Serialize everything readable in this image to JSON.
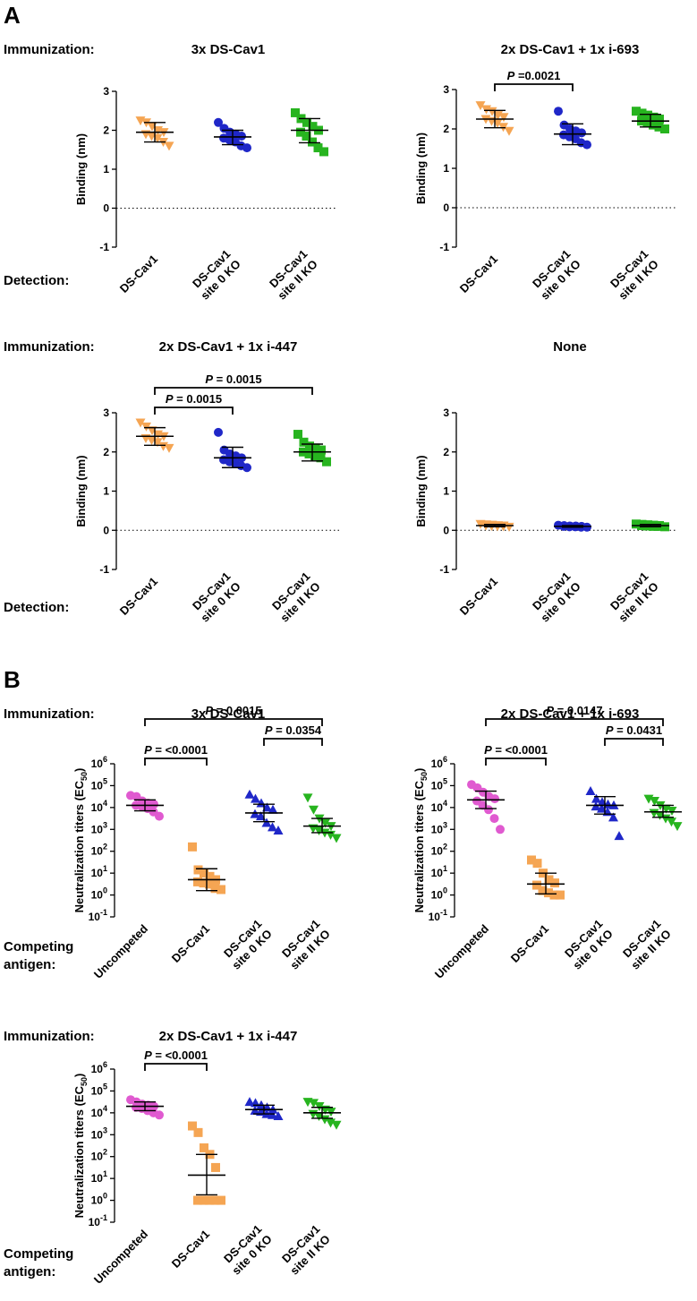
{
  "panels": {
    "A": "A",
    "B": "B"
  },
  "row_labels": {
    "immunization": "Immunization:",
    "detection": "Detection:",
    "competing_line1": "Competing",
    "competing_line2": "antigen:"
  },
  "colors": {
    "orange": "#F5A553",
    "blue": "#1F27C8",
    "green": "#27B41F",
    "magenta": "#E05AD0"
  },
  "chart_data": [
    {
      "id": "a1",
      "type": "scatter",
      "title": "3x DS-Cav1",
      "ylabel": "Binding (nm)",
      "ylim": [
        -1,
        3
      ],
      "yticks": [
        "-1",
        "0",
        "1",
        "2",
        "3"
      ],
      "zero_line": true,
      "categories": [
        [
          "DS-Cav1"
        ],
        [
          "DS-Cav1",
          "site 0 KO"
        ],
        [
          "DS-Cav1",
          "site II KO"
        ]
      ],
      "series": [
        {
          "name": "DS-Cav1",
          "color": "orange",
          "marker": "triangle-down",
          "mean": 1.95,
          "sd_low": 1.7,
          "sd_high": 2.2,
          "values": [
            2.25,
            2.2,
            2.1,
            2.0,
            1.95,
            1.9,
            1.85,
            1.8,
            1.7,
            1.6
          ]
        },
        {
          "name": "DS-Cav1 site 0 KO",
          "color": "blue",
          "marker": "circle",
          "mean": 1.83,
          "sd_low": 1.63,
          "sd_high": 2.0,
          "values": [
            2.2,
            2.05,
            1.95,
            1.9,
            1.85,
            1.8,
            1.75,
            1.7,
            1.6,
            1.55
          ]
        },
        {
          "name": "DS-Cav1 site II KO",
          "color": "green",
          "marker": "square",
          "mean": 2.0,
          "sd_low": 1.68,
          "sd_high": 2.3,
          "values": [
            2.45,
            2.3,
            2.2,
            2.1,
            2.0,
            1.95,
            1.85,
            1.7,
            1.55,
            1.45
          ]
        }
      ],
      "comparisons": []
    },
    {
      "id": "a2",
      "type": "scatter",
      "title": "2x DS-Cav1 + 1x i-693",
      "ylabel": "Binding (nm)",
      "ylim": [
        -1,
        3
      ],
      "yticks": [
        "-1",
        "0",
        "1",
        "2",
        "3"
      ],
      "zero_line": true,
      "categories": [
        [
          "DS-Cav1"
        ],
        [
          "DS-Cav1",
          "site 0 KO"
        ],
        [
          "DS-Cav1",
          "site II KO"
        ]
      ],
      "series": [
        {
          "name": "DS-Cav1",
          "color": "orange",
          "marker": "triangle-down",
          "mean": 2.25,
          "sd_low": 2.03,
          "sd_high": 2.47,
          "values": [
            2.6,
            2.5,
            2.45,
            2.35,
            2.3,
            2.25,
            2.2,
            2.15,
            2.05,
            1.95
          ]
        },
        {
          "name": "DS-Cav1 site 0 KO",
          "color": "blue",
          "marker": "circle",
          "mean": 1.87,
          "sd_low": 1.6,
          "sd_high": 2.13,
          "values": [
            2.45,
            2.1,
            2.0,
            1.95,
            1.9,
            1.85,
            1.8,
            1.75,
            1.65,
            1.6
          ]
        },
        {
          "name": "DS-Cav1 site II KO",
          "color": "green",
          "marker": "square",
          "mean": 2.2,
          "sd_low": 2.05,
          "sd_high": 2.37,
          "values": [
            2.45,
            2.4,
            2.35,
            2.3,
            2.25,
            2.2,
            2.15,
            2.1,
            2.05,
            2.0
          ]
        }
      ],
      "comparisons": [
        {
          "from": 0,
          "to": 1,
          "p_italic": "P",
          "p_rest": " =0.0021"
        }
      ]
    },
    {
      "id": "a3",
      "type": "scatter",
      "title": "2x DS-Cav1 + 1x i-447",
      "ylabel": "Binding (nm)",
      "ylim": [
        -1,
        3
      ],
      "yticks": [
        "-1",
        "0",
        "1",
        "2",
        "3"
      ],
      "zero_line": true,
      "categories": [
        [
          "DS-Cav1"
        ],
        [
          "DS-Cav1",
          "site 0 KO"
        ],
        [
          "DS-Cav1",
          "site II KO"
        ]
      ],
      "series": [
        {
          "name": "DS-Cav1",
          "color": "orange",
          "marker": "triangle-down",
          "mean": 2.4,
          "sd_low": 2.17,
          "sd_high": 2.62,
          "values": [
            2.75,
            2.65,
            2.55,
            2.45,
            2.4,
            2.35,
            2.3,
            2.25,
            2.15,
            2.1
          ]
        },
        {
          "name": "DS-Cav1 site 0 KO",
          "color": "blue",
          "marker": "circle",
          "mean": 1.85,
          "sd_low": 1.6,
          "sd_high": 2.12,
          "values": [
            2.5,
            2.05,
            1.95,
            1.9,
            1.85,
            1.8,
            1.75,
            1.7,
            1.65,
            1.6
          ]
        },
        {
          "name": "DS-Cav1 site II KO",
          "color": "green",
          "marker": "square",
          "mean": 2.0,
          "sd_low": 1.77,
          "sd_high": 2.2,
          "values": [
            2.45,
            2.25,
            2.15,
            2.1,
            2.05,
            2.0,
            1.95,
            1.9,
            1.85,
            1.75
          ]
        }
      ],
      "comparisons": [
        {
          "from": 0,
          "to": 1,
          "p_italic": "P",
          "p_rest": " = 0.0015"
        },
        {
          "from": 0,
          "to": 2,
          "p_italic": "P",
          "p_rest": " = 0.0015"
        }
      ]
    },
    {
      "id": "a4",
      "type": "scatter",
      "title": "None",
      "ylabel": "Binding (nm)",
      "ylim": [
        -1,
        3
      ],
      "yticks": [
        "-1",
        "0",
        "1",
        "2",
        "3"
      ],
      "zero_line": true,
      "categories": [
        [
          "DS-Cav1"
        ],
        [
          "DS-Cav1",
          "site 0 KO"
        ],
        [
          "DS-Cav1",
          "site II KO"
        ]
      ],
      "series": [
        {
          "name": "DS-Cav1",
          "color": "orange",
          "marker": "triangle-down",
          "mean": 0.12,
          "sd_low": 0.09,
          "sd_high": 0.15,
          "values": [
            0.16,
            0.15,
            0.14,
            0.13,
            0.12,
            0.12,
            0.11,
            0.1,
            0.1,
            0.09
          ]
        },
        {
          "name": "DS-Cav1 site 0 KO",
          "color": "blue",
          "marker": "circle",
          "mean": 0.1,
          "sd_low": 0.08,
          "sd_high": 0.12,
          "values": [
            0.13,
            0.12,
            0.11,
            0.11,
            0.1,
            0.1,
            0.09,
            0.09,
            0.08,
            0.08
          ]
        },
        {
          "name": "DS-Cav1 site II KO",
          "color": "green",
          "marker": "square",
          "mean": 0.12,
          "sd_low": 0.09,
          "sd_high": 0.15,
          "values": [
            0.16,
            0.15,
            0.14,
            0.13,
            0.12,
            0.12,
            0.11,
            0.1,
            0.1,
            0.09
          ]
        }
      ],
      "comparisons": []
    },
    {
      "id": "b1",
      "type": "scatter",
      "title": "3x DS-Cav1",
      "ylabel": "Neutralization titers (EC",
      "ylabel_sub": "50",
      "ylabel_end": ")",
      "ylim": [
        -1,
        6
      ],
      "log": true,
      "yticks": [
        "-1",
        "0",
        "1",
        "2",
        "3",
        "4",
        "5",
        "6"
      ],
      "zero_line": false,
      "categories": [
        [
          "Uncompeted"
        ],
        [
          "DS-Cav1"
        ],
        [
          "DS-Cav1",
          "site 0 KO"
        ],
        [
          "DS-Cav1",
          "site II KO"
        ]
      ],
      "series": [
        {
          "name": "Uncompeted",
          "color": "magenta",
          "marker": "circle",
          "mean": 4.1,
          "sd_low": 3.85,
          "sd_high": 4.35,
          "values": [
            4.55,
            4.5,
            4.3,
            4.2,
            4.15,
            4.1,
            4.05,
            3.95,
            3.8,
            3.6
          ]
        },
        {
          "name": "DS-Cav1",
          "color": "orange",
          "marker": "square",
          "mean": 0.7,
          "sd_low": 0.2,
          "sd_high": 1.2,
          "values": [
            2.2,
            1.15,
            1.0,
            0.85,
            0.7,
            0.6,
            0.55,
            0.5,
            0.3,
            0.25
          ]
        },
        {
          "name": "DS-Cav1 site 0 KO",
          "color": "blue",
          "marker": "triangle-up",
          "mean": 3.75,
          "sd_low": 3.35,
          "sd_high": 4.15,
          "values": [
            4.6,
            4.4,
            4.2,
            4.0,
            3.9,
            3.7,
            3.6,
            3.3,
            3.1,
            2.95
          ]
        },
        {
          "name": "DS-Cav1 site II KO",
          "color": "green",
          "marker": "triangle-down",
          "mean": 3.15,
          "sd_low": 2.85,
          "sd_high": 3.5,
          "values": [
            4.45,
            3.9,
            3.5,
            3.3,
            3.15,
            3.05,
            2.95,
            2.85,
            2.75,
            2.6
          ]
        }
      ],
      "comparisons": [
        {
          "from": 0,
          "to": 1,
          "p_italic": "P",
          "p_rest": " = <0.0001"
        },
        {
          "from": 2,
          "to": 3,
          "p_italic": "P",
          "p_rest": " = 0.0354"
        },
        {
          "from": 0,
          "to": 3,
          "p_italic": "P",
          "p_rest": " =    0.0015"
        }
      ]
    },
    {
      "id": "b2",
      "type": "scatter",
      "title": "2x DS-Cav1 + 1x i-693",
      "ylabel": "Neutralization titers (EC",
      "ylabel_sub": "50",
      "ylabel_end": ")",
      "ylim": [
        -1,
        6
      ],
      "log": true,
      "yticks": [
        "-1",
        "0",
        "1",
        "2",
        "3",
        "4",
        "5",
        "6"
      ],
      "zero_line": false,
      "categories": [
        [
          "Uncompeted"
        ],
        [
          "DS-Cav1"
        ],
        [
          "DS-Cav1",
          "site 0 KO"
        ],
        [
          "DS-Cav1",
          "site II KO"
        ]
      ],
      "series": [
        {
          "name": "Uncompeted",
          "color": "magenta",
          "marker": "circle",
          "mean": 4.35,
          "sd_low": 3.95,
          "sd_high": 4.75,
          "values": [
            5.05,
            4.9,
            4.7,
            4.5,
            4.4,
            4.3,
            4.1,
            3.9,
            3.5,
            3.0
          ]
        },
        {
          "name": "DS-Cav1",
          "color": "orange",
          "marker": "square",
          "mean": 0.5,
          "sd_low": 0.05,
          "sd_high": 1.0,
          "values": [
            1.6,
            1.45,
            1.0,
            0.7,
            0.55,
            0.45,
            0.2,
            0.1,
            0.0,
            0.0
          ]
        },
        {
          "name": "DS-Cav1 site 0 KO",
          "color": "blue",
          "marker": "triangle-up",
          "mean": 4.1,
          "sd_low": 3.7,
          "sd_high": 4.5,
          "values": [
            4.75,
            4.4,
            4.25,
            4.15,
            4.1,
            4.05,
            3.95,
            3.8,
            3.55,
            2.7
          ]
        },
        {
          "name": "DS-Cav1 site II KO",
          "color": "green",
          "marker": "triangle-down",
          "mean": 3.8,
          "sd_low": 3.55,
          "sd_high": 4.1,
          "values": [
            4.4,
            4.3,
            4.1,
            3.95,
            3.85,
            3.75,
            3.65,
            3.5,
            3.35,
            3.15
          ]
        }
      ],
      "comparisons": [
        {
          "from": 0,
          "to": 1,
          "p_italic": "P",
          "p_rest": " = <0.0001"
        },
        {
          "from": 2,
          "to": 3,
          "p_italic": "P",
          "p_rest": " = 0.0431"
        },
        {
          "from": 0,
          "to": 3,
          "p_italic": "P",
          "p_rest": " =    0.0147"
        }
      ]
    },
    {
      "id": "b3",
      "type": "scatter",
      "title": "2x DS-Cav1 + 1x i-447",
      "ylabel": "Neutralization titers (EC",
      "ylabel_sub": "50",
      "ylabel_end": ")",
      "ylim": [
        -1,
        6
      ],
      "log": true,
      "yticks": [
        "-1",
        "0",
        "1",
        "2",
        "3",
        "4",
        "5",
        "6"
      ],
      "zero_line": false,
      "categories": [
        [
          "Uncompeted"
        ],
        [
          "DS-Cav1"
        ],
        [
          "DS-Cav1",
          "site 0 KO"
        ],
        [
          "DS-Cav1",
          "site II KO"
        ]
      ],
      "series": [
        {
          "name": "Uncompeted",
          "color": "magenta",
          "marker": "circle",
          "mean": 4.3,
          "sd_low": 4.1,
          "sd_high": 4.5,
          "values": [
            4.6,
            4.5,
            4.4,
            4.35,
            4.3,
            4.25,
            4.2,
            4.1,
            4.0,
            3.9
          ]
        },
        {
          "name": "DS-Cav1",
          "color": "orange",
          "marker": "square",
          "mean": 1.15,
          "sd_low": 0.25,
          "sd_high": 2.1,
          "values": [
            3.4,
            3.1,
            2.4,
            2.1,
            1.5,
            0.0,
            0.0,
            0.0,
            0.0,
            0.0
          ]
        },
        {
          "name": "DS-Cav1 site 0 KO",
          "color": "blue",
          "marker": "triangle-up",
          "mean": 4.15,
          "sd_low": 3.95,
          "sd_high": 4.35,
          "values": [
            4.5,
            4.45,
            4.35,
            4.25,
            4.15,
            4.1,
            4.05,
            3.95,
            3.9,
            3.85
          ]
        },
        {
          "name": "DS-Cav1 site II KO",
          "color": "green",
          "marker": "triangle-down",
          "mean": 4.0,
          "sd_low": 3.75,
          "sd_high": 4.25,
          "values": [
            4.5,
            4.45,
            4.3,
            4.15,
            4.05,
            3.95,
            3.85,
            3.7,
            3.55,
            3.45
          ]
        }
      ],
      "comparisons": [
        {
          "from": 0,
          "to": 1,
          "p_italic": "P",
          "p_rest": " = <0.0001"
        }
      ]
    }
  ]
}
